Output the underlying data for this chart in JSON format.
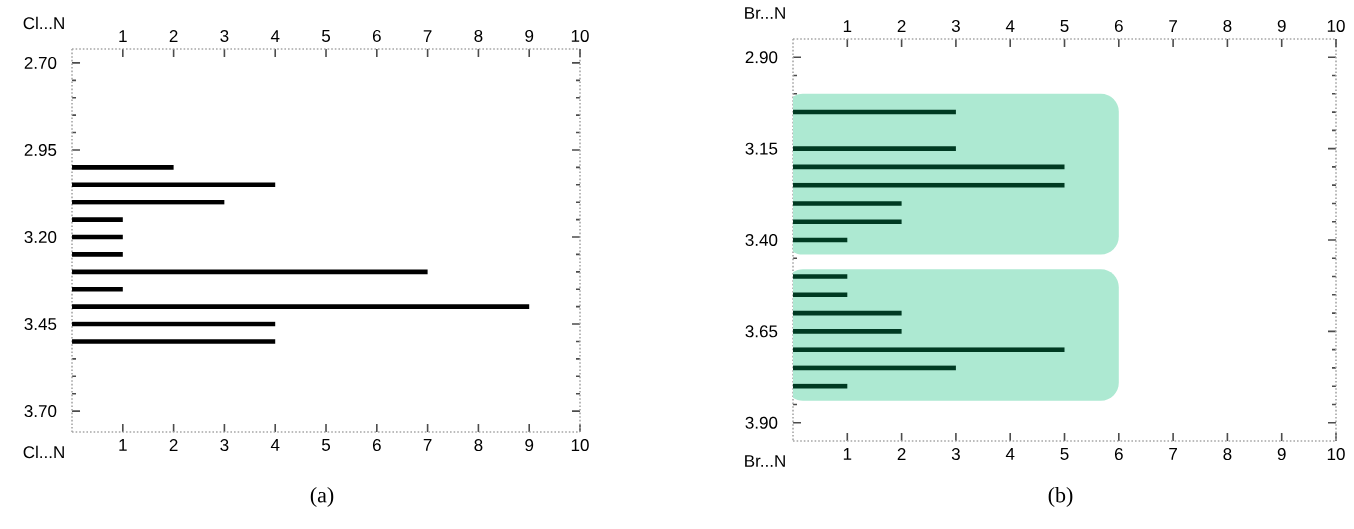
{
  "chart_data": [
    {
      "type": "bar",
      "orientation": "horizontal",
      "color": "#000000",
      "x": [
        3.0,
        3.05,
        3.1,
        3.15,
        3.2,
        3.25,
        3.3,
        3.35,
        3.4,
        3.45,
        3.5
      ],
      "values": [
        2,
        4,
        3,
        1,
        1,
        1,
        7,
        1,
        9,
        4,
        4
      ],
      "xlim": [
        0,
        10
      ],
      "xticks": [
        1,
        2,
        3,
        4,
        5,
        6,
        7,
        8,
        9,
        10
      ],
      "x2lim": [
        0,
        10
      ],
      "x2ticks": [
        1,
        2,
        3,
        4,
        5,
        6,
        7,
        8,
        9,
        10
      ],
      "ylim": [
        3.76,
        2.66
      ],
      "yticks": [
        {
          "value": 2.7,
          "label": "2.70"
        },
        {
          "value": 2.95,
          "label": "2.95"
        },
        {
          "value": 3.2,
          "label": "3.20"
        },
        {
          "value": 3.45,
          "label": "3.45"
        },
        {
          "value": 3.7,
          "label": "3.70"
        }
      ],
      "xlabel": "Cl...N",
      "x2label": "Cl...N",
      "annotations": [
        "(a)"
      ]
    },
    {
      "type": "bar",
      "orientation": "horizontal",
      "color": "#003a22",
      "x": [
        3.05,
        3.1,
        3.15,
        3.2,
        3.25,
        3.3,
        3.35,
        3.4,
        3.45,
        3.5,
        3.55,
        3.6,
        3.65,
        3.7,
        3.75,
        3.8
      ],
      "values": [
        3,
        0,
        3,
        5,
        5,
        2,
        2,
        1,
        0,
        1,
        1,
        2,
        2,
        5,
        3,
        1
      ],
      "xlim": [
        0,
        10
      ],
      "xticks": [
        1,
        2,
        3,
        4,
        5,
        6,
        7,
        8,
        9,
        10
      ],
      "x2lim": [
        0,
        10
      ],
      "x2ticks": [
        1,
        2,
        3,
        4,
        5,
        6,
        7,
        8,
        9,
        10
      ],
      "ylim": [
        3.95,
        2.85
      ],
      "yticks": [
        {
          "value": 2.9,
          "label": "2.90"
        },
        {
          "value": 3.15,
          "label": "3.15"
        },
        {
          "value": 3.4,
          "label": "3.40"
        },
        {
          "value": 3.65,
          "label": "3.65"
        },
        {
          "value": 3.9,
          "label": "3.90"
        }
      ],
      "bands": [
        {
          "axis": "y",
          "from": 3.0,
          "to": 3.44,
          "color": "#ade9d2"
        },
        {
          "axis": "y",
          "from": 3.48,
          "to": 3.84,
          "color": "#ade9d2"
        }
      ],
      "xlabel": "Br...N",
      "x2label": "Br...N",
      "annotations": [
        "(b)"
      ]
    }
  ]
}
